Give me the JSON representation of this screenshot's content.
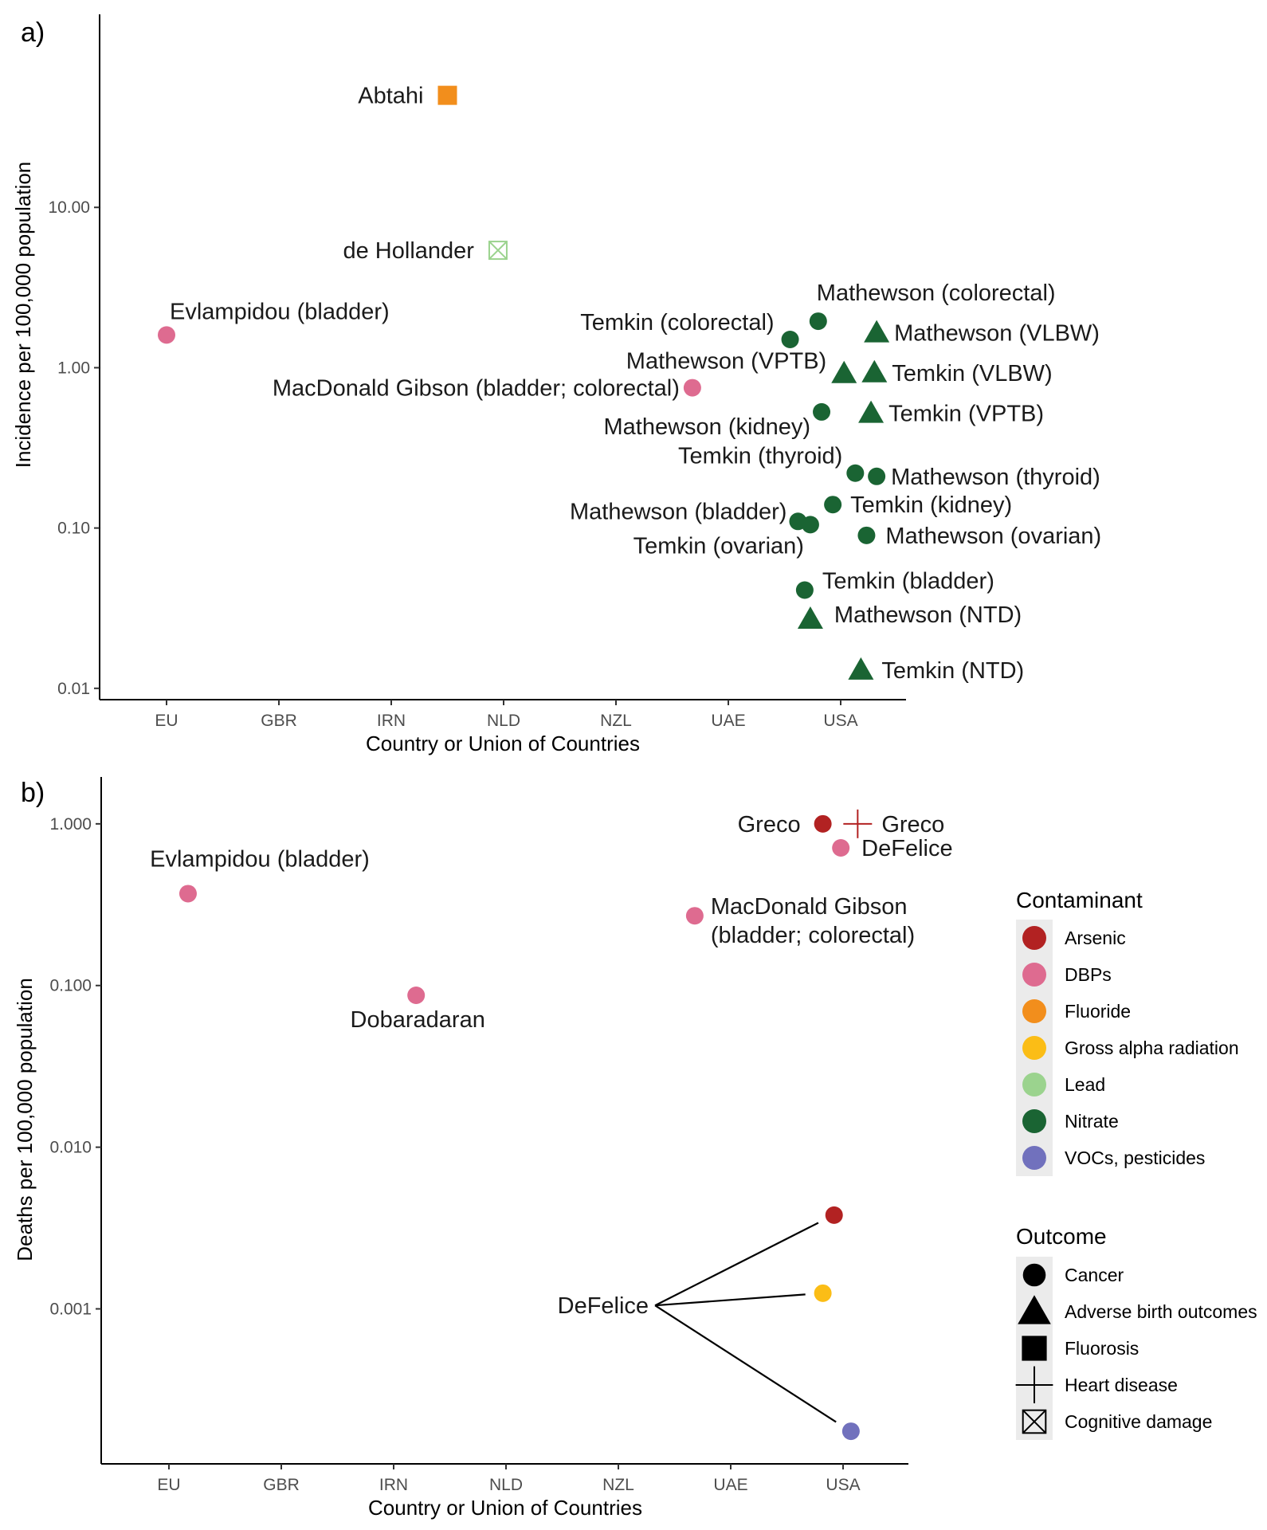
{
  "colors": {
    "Arsenic": "#b22222",
    "DBPs": "#de6b90",
    "Fluoride": "#f28e1c",
    "Gross alpha radiation": "#fbbd16",
    "Lead": "#9bd38e",
    "Nitrate": "#1a6433",
    "VOCs, pesticides": "#7171bd"
  },
  "chart_data": [
    {
      "panel": "a)",
      "type": "scatter",
      "xlabel": "Country or Union of Countries",
      "ylabel": "Incidence per 100,000 population",
      "yscale": "log",
      "categories": [
        "EU",
        "GBR",
        "IRN",
        "NLD",
        "NZL",
        "UAE",
        "USA"
      ],
      "yticks": [
        {
          "v": 10,
          "t": "10.00"
        },
        {
          "v": 1,
          "t": "1.00"
        },
        {
          "v": 0.1,
          "t": "0.10"
        },
        {
          "v": 0.01,
          "t": "0.01"
        }
      ],
      "ylim": [
        0.0085,
        160
      ],
      "points": [
        {
          "label": "Abtahi",
          "x": 3.5,
          "y": 50,
          "contaminant": "Fluoride",
          "outcome": "Fluorosis",
          "labelAnchor": "end",
          "ldx": -30,
          "ldy": 10
        },
        {
          "label": "de Hollander",
          "x": 3.95,
          "y": 5.4,
          "contaminant": "Lead",
          "outcome": "Cognitive damage",
          "labelAnchor": "end",
          "ldx": -30,
          "ldy": 10
        },
        {
          "label": "Evlampidou (bladder)",
          "x": 1.0,
          "y": 1.6,
          "contaminant": "DBPs",
          "outcome": "Cancer",
          "labelAnchor": "start",
          "ldx": 4,
          "ldy": -20
        },
        {
          "label": "MacDonald Gibson (bladder; colorectal)",
          "x": 5.68,
          "y": 0.75,
          "contaminant": "DBPs",
          "outcome": "Cancer",
          "labelAnchor": "end",
          "ldx": -16,
          "ldy": 10
        },
        {
          "label": "Mathewson (colorectal)",
          "x": 6.8,
          "y": 1.95,
          "contaminant": "Nitrate",
          "outcome": "Cancer",
          "labelAnchor": "start",
          "ldx": -2,
          "ldy": -26
        },
        {
          "label": "Temkin (colorectal)",
          "x": 6.55,
          "y": 1.5,
          "contaminant": "Nitrate",
          "outcome": "Cancer",
          "labelAnchor": "end",
          "ldx": -20,
          "ldy": -12
        },
        {
          "label": "Mathewson (VLBW)",
          "x": 7.32,
          "y": 1.65,
          "contaminant": "Nitrate",
          "outcome": "Adverse birth outcomes",
          "labelAnchor": "start",
          "ldx": 22,
          "ldy": 10
        },
        {
          "label": "Mathewson (VPTB)",
          "x": 7.03,
          "y": 0.92,
          "contaminant": "Nitrate",
          "outcome": "Adverse birth outcomes",
          "labelAnchor": "end",
          "ldx": -22,
          "ldy": -6
        },
        {
          "label": "Temkin (VLBW)",
          "x": 7.3,
          "y": 0.93,
          "contaminant": "Nitrate",
          "outcome": "Adverse birth outcomes",
          "labelAnchor": "start",
          "ldx": 22,
          "ldy": 10
        },
        {
          "label": "Temkin (VPTB)",
          "x": 7.27,
          "y": 0.52,
          "contaminant": "Nitrate",
          "outcome": "Adverse birth outcomes",
          "labelAnchor": "start",
          "ldx": 22,
          "ldy": 10
        },
        {
          "label": "Mathewson (kidney)",
          "x": 6.83,
          "y": 0.53,
          "contaminant": "Nitrate",
          "outcome": "Cancer",
          "labelAnchor": "end",
          "ldx": -14,
          "ldy": 28
        },
        {
          "label": "Temkin (thyroid)",
          "x": 7.13,
          "y": 0.22,
          "contaminant": "Nitrate",
          "outcome": "Cancer",
          "labelAnchor": "end",
          "ldx": -16,
          "ldy": -12
        },
        {
          "label": "Mathewson (thyroid)",
          "x": 7.32,
          "y": 0.21,
          "contaminant": "Nitrate",
          "outcome": "Cancer",
          "labelAnchor": "start",
          "ldx": 18,
          "ldy": 10
        },
        {
          "label": "Temkin (kidney)",
          "x": 6.93,
          "y": 0.14,
          "contaminant": "Nitrate",
          "outcome": "Cancer",
          "labelAnchor": "start",
          "ldx": 22,
          "ldy": 10
        },
        {
          "label": "Mathewson (bladder)",
          "x": 6.62,
          "y": 0.11,
          "contaminant": "Nitrate",
          "outcome": "Cancer",
          "labelAnchor": "end",
          "ldx": -14,
          "ldy": -3
        },
        {
          "label": "Temkin (ovarian)",
          "x": 6.73,
          "y": 0.105,
          "contaminant": "Nitrate",
          "outcome": "Cancer",
          "labelAnchor": "end",
          "ldx": -8,
          "ldy": 36
        },
        {
          "label": "Mathewson (ovarian)",
          "x": 7.23,
          "y": 0.09,
          "contaminant": "Nitrate",
          "outcome": "Cancer",
          "labelAnchor": "start",
          "ldx": 24,
          "ldy": 10
        },
        {
          "label": "Temkin (bladder)",
          "x": 6.68,
          "y": 0.041,
          "contaminant": "Nitrate",
          "outcome": "Cancer",
          "labelAnchor": "start",
          "ldx": 22,
          "ldy": -2
        },
        {
          "label": "Mathewson (NTD)",
          "x": 6.73,
          "y": 0.027,
          "contaminant": "Nitrate",
          "outcome": "Adverse birth outcomes",
          "labelAnchor": "start",
          "ldx": 30,
          "ldy": 4
        },
        {
          "label": "Temkin (NTD)",
          "x": 7.18,
          "y": 0.013,
          "contaminant": "Nitrate",
          "outcome": "Adverse birth outcomes",
          "labelAnchor": "start",
          "ldx": 26,
          "ldy": 10
        }
      ]
    },
    {
      "panel": "b)",
      "type": "scatter",
      "xlabel": "Country or Union of Countries",
      "ylabel": "Deaths per 100,000 population",
      "yscale": "log",
      "categories": [
        "EU",
        "GBR",
        "IRN",
        "NLD",
        "NZL",
        "UAE",
        "USA"
      ],
      "yticks": [
        {
          "v": 1,
          "t": "1.000"
        },
        {
          "v": 0.1,
          "t": "0.100"
        },
        {
          "v": 0.01,
          "t": "0.010"
        },
        {
          "v": 0.001,
          "t": "0.001"
        }
      ],
      "ylim": [
        0.00011,
        1.95
      ],
      "points": [
        {
          "label": "Greco",
          "x": 6.82,
          "y": 1.0,
          "contaminant": "Arsenic",
          "outcome": "Cancer",
          "labelAnchor": "end",
          "ldx": -28,
          "ldy": 10
        },
        {
          "label": "Greco",
          "x": 7.13,
          "y": 1.0,
          "contaminant": "Arsenic",
          "outcome": "Heart disease",
          "labelAnchor": "start",
          "ldx": 30,
          "ldy": 10
        },
        {
          "label": "DeFelice",
          "x": 6.98,
          "y": 0.71,
          "contaminant": "DBPs",
          "outcome": "Cancer",
          "labelAnchor": "start",
          "ldx": 26,
          "ldy": 10
        },
        {
          "label": "Evlampidou (bladder)",
          "x": 1.17,
          "y": 0.37,
          "contaminant": "DBPs",
          "outcome": "Cancer",
          "labelAnchor": "middle",
          "ldx": 90,
          "ldy": -34
        },
        {
          "label": "MacDonald Gibson|(bladder; colorectal)",
          "x": 5.68,
          "y": 0.27,
          "contaminant": "DBPs",
          "outcome": "Cancer",
          "labelAnchor": "start",
          "ldx": 20,
          "ldy": -2
        },
        {
          "label": "Dobaradaran",
          "x": 3.2,
          "y": 0.087,
          "contaminant": "DBPs",
          "outcome": "Cancer",
          "labelAnchor": "middle",
          "ldx": 2,
          "ldy": 40
        },
        {
          "label": "",
          "x": 6.92,
          "y": 0.0038,
          "contaminant": "Arsenic",
          "outcome": "Cancer"
        },
        {
          "label": "",
          "x": 6.82,
          "y": 0.00125,
          "contaminant": "Gross alpha radiation",
          "outcome": "Cancer"
        },
        {
          "label": "",
          "x": 7.07,
          "y": 0.000175,
          "contaminant": "VOCs, pesticides",
          "outcome": "Cancer"
        }
      ],
      "callout": {
        "label": "DeFelice",
        "x": 5.27,
        "y": 0.00105,
        "targets": [
          6,
          7,
          8
        ]
      }
    }
  ],
  "legend": {
    "contaminant_title": "Contaminant",
    "contaminants": [
      "Arsenic",
      "DBPs",
      "Fluoride",
      "Gross alpha radiation",
      "Lead",
      "Nitrate",
      "VOCs, pesticides"
    ],
    "outcome_title": "Outcome",
    "outcomes": [
      "Cancer",
      "Adverse birth outcomes",
      "Fluorosis",
      "Heart disease",
      "Cognitive damage"
    ]
  }
}
